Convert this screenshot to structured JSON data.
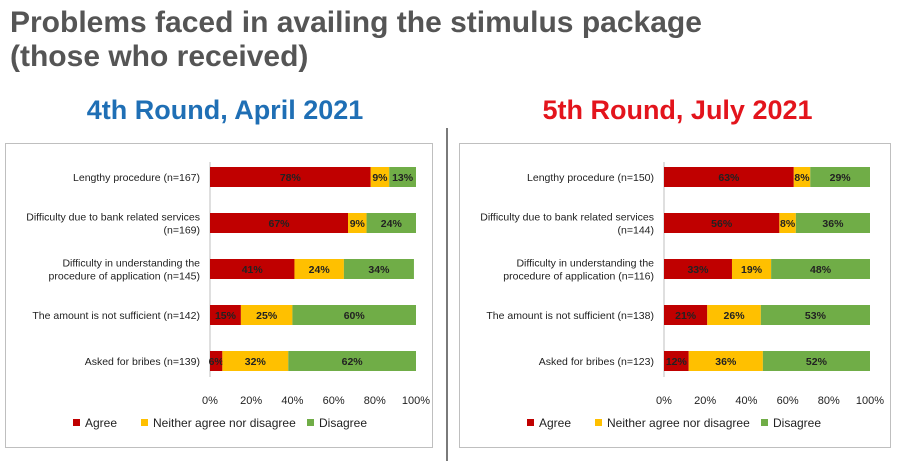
{
  "title": {
    "line1": "Problems faced in availing the stimulus package",
    "line2": "(those who received)"
  },
  "colors": {
    "title": "#555555",
    "left_heading": "#1f6fb5",
    "right_heading": "#e3141c",
    "agree": "#c00000",
    "neither": "#ffc000",
    "disagree": "#70ad47"
  },
  "chart_data": [
    {
      "type": "bar",
      "orientation": "horizontal",
      "stacked": "100%",
      "title": "4th Round, April 2021",
      "categories": [
        [
          "Lengthy procedure (n=167)"
        ],
        [
          "Difficulty due to bank related services",
          "(n=169)"
        ],
        [
          "Difficulty in understanding the",
          "procedure of application (n=145)"
        ],
        [
          "The amount is not sufficient (n=142)"
        ],
        [
          "Asked for bribes (n=139)"
        ]
      ],
      "series": [
        {
          "name": "Agree",
          "color": "#c00000",
          "values": [
            78,
            67,
            41,
            15,
            6
          ],
          "labels": [
            "78%",
            "67%",
            "41%",
            "15%",
            "6%"
          ]
        },
        {
          "name": "Neither agree nor disagree",
          "color": "#ffc000",
          "values": [
            9,
            9,
            24,
            25,
            32
          ],
          "labels": [
            "9%",
            "9%",
            "24%",
            "25%",
            "32%"
          ]
        },
        {
          "name": "Disagree",
          "color": "#70ad47",
          "values": [
            13,
            24,
            34,
            60,
            62
          ],
          "labels": [
            "13%",
            "24%",
            "34%",
            "60%",
            "62%"
          ]
        }
      ],
      "xlim": [
        0,
        100
      ],
      "xticks": [
        "0%",
        "20%",
        "40%",
        "60%",
        "80%",
        "100%"
      ],
      "legend": "bottom",
      "grid": false
    },
    {
      "type": "bar",
      "orientation": "horizontal",
      "stacked": "100%",
      "title": "5th Round, July 2021",
      "categories": [
        [
          "Lengthy procedure (n=150)"
        ],
        [
          "Difficulty due to bank related services",
          "(n=144)"
        ],
        [
          "Difficulty in understanding the",
          "procedure of application (n=116)"
        ],
        [
          "The amount is not sufficient (n=138)"
        ],
        [
          "Asked for bribes (n=123)"
        ]
      ],
      "series": [
        {
          "name": "Agree",
          "color": "#c00000",
          "values": [
            63,
            56,
            33,
            21,
            12
          ],
          "labels": [
            "63%",
            "56%",
            "33%",
            "21%",
            "12%"
          ]
        },
        {
          "name": "Neither agree nor disagree",
          "color": "#ffc000",
          "values": [
            8,
            8,
            19,
            26,
            36
          ],
          "labels": [
            "8%",
            "8%",
            "19%",
            "26%",
            "36%"
          ]
        },
        {
          "name": "Disagree",
          "color": "#70ad47",
          "values": [
            29,
            36,
            48,
            53,
            52
          ],
          "labels": [
            "29%",
            "36%",
            "48%",
            "53%",
            "52%"
          ]
        }
      ],
      "xlim": [
        0,
        100
      ],
      "xticks": [
        "0%",
        "20%",
        "40%",
        "60%",
        "80%",
        "100%"
      ],
      "legend": "bottom",
      "grid": false
    }
  ]
}
